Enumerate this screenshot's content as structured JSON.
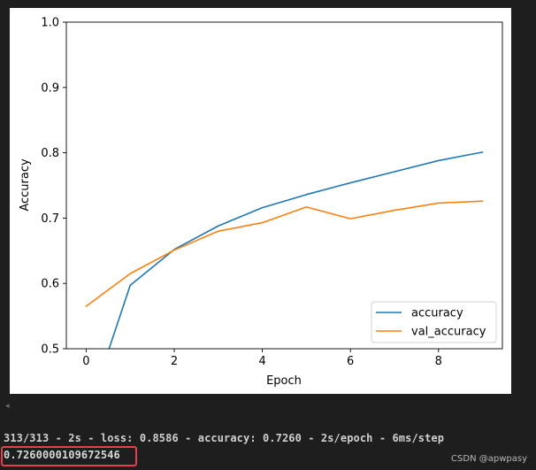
{
  "console": {
    "log_line": "313/313 - 2s - loss: 0.8586 - accuracy: 0.7260 - 2s/epoch - 6ms/step",
    "result_value": "0.7260000109672546",
    "scroll_arrow": "◂"
  },
  "watermark": "CSDN @apwpasy",
  "chart_data": {
    "type": "line",
    "title": "",
    "xlabel": "Epoch",
    "ylabel": "Accuracy",
    "xlim": [
      -0.45,
      9.45
    ],
    "ylim": [
      0.5,
      1.0
    ],
    "x_ticks": [
      0,
      2,
      4,
      6,
      8
    ],
    "x_tick_labels": [
      "0",
      "2",
      "4",
      "6",
      "8"
    ],
    "y_ticks": [
      0.5,
      0.6,
      0.7,
      0.8,
      0.9,
      1.0
    ],
    "y_tick_labels": [
      "0.5",
      "0.6",
      "0.7",
      "0.8",
      "0.9",
      "1.0"
    ],
    "grid": false,
    "legend_position": "lower-right",
    "x": [
      0,
      1,
      2,
      3,
      4,
      5,
      6,
      7,
      8,
      9
    ],
    "series": [
      {
        "name": "accuracy",
        "color": "#1f77b4",
        "values": [
          0.395,
          0.597,
          0.652,
          0.688,
          0.716,
          0.736,
          0.754,
          0.771,
          0.788,
          0.801
        ]
      },
      {
        "name": "val_accuracy",
        "color": "#ff7f0e",
        "values": [
          0.565,
          0.615,
          0.651,
          0.68,
          0.693,
          0.717,
          0.699,
          0.712,
          0.723,
          0.726
        ]
      }
    ]
  }
}
